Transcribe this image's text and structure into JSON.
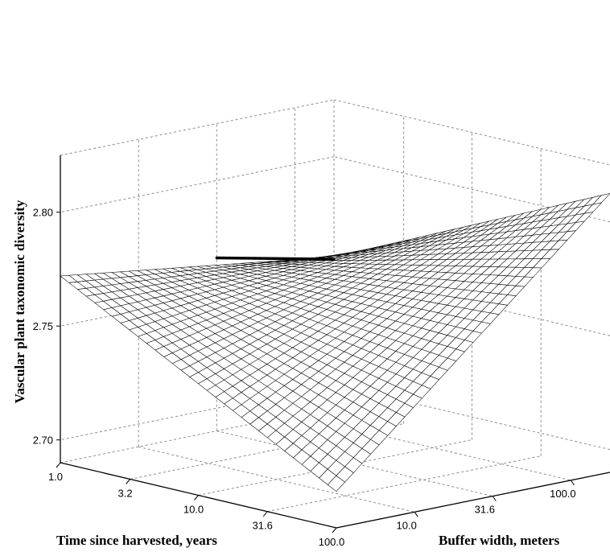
{
  "chart_data": {
    "type": "surface",
    "xlabel": "Time since harvested, years",
    "ylabel": "Buffer width, meters",
    "zlabel": "Vascular plant taxonomic diversity",
    "x_scale": "log",
    "y_scale": "log",
    "x_range": [
      1.0,
      100.0
    ],
    "y_range": [
      3.16,
      177.8
    ],
    "z_range": [
      2.69,
      2.825
    ],
    "x_ticks": [
      "1.0",
      "3.2",
      "10.0",
      "31.6",
      "100.0"
    ],
    "y_ticks": [
      "10.0",
      "31.6",
      "100.0"
    ],
    "z_ticks": [
      "2.70",
      "2.75",
      "2.80"
    ],
    "grid": true,
    "surface_corners": {
      "time_1_buffer_3.2": 2.772,
      "time_1_buffer_177.8": 2.756,
      "time_100_buffer_3.2": 2.706,
      "time_100_buffer_177.8": 2.8125
    },
    "highlight_line": {
      "description": "",
      "from": {
        "time": 1.0,
        "buffer": 31.6,
        "value": 2.766
      },
      "to": {
        "time": 1.0,
        "buffer": 177.8,
        "value": 2.755
      }
    }
  }
}
